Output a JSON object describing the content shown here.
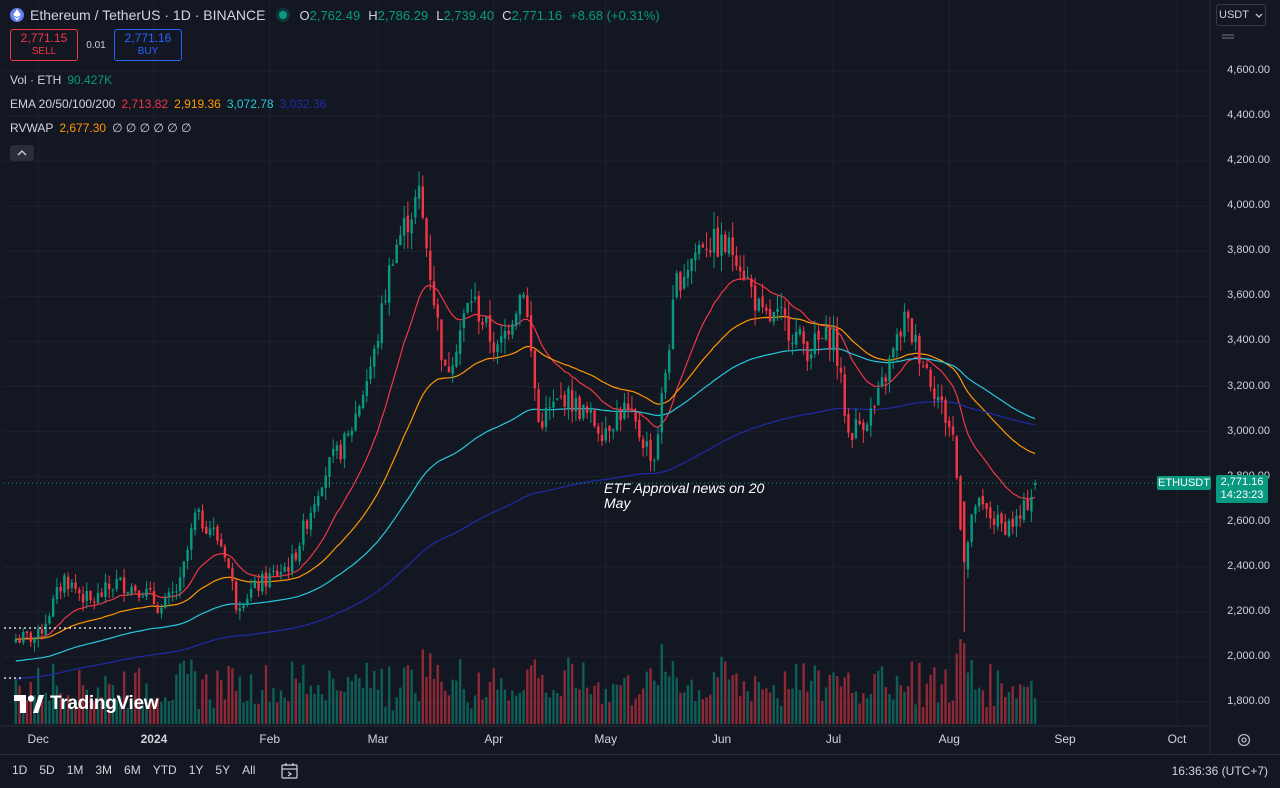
{
  "header": {
    "symbol_title": "Ethereum / TetherUS · 1D · BINANCE",
    "ohlc": [
      {
        "key": "O",
        "value": "2,762.49"
      },
      {
        "key": "H",
        "value": "2,786.29"
      },
      {
        "key": "L",
        "value": "2,739.40"
      },
      {
        "key": "C",
        "value": "2,771.16"
      },
      {
        "key": "",
        "value": "+8.68 (+0.31%)"
      }
    ]
  },
  "trade": {
    "sell_price": "2,771.15",
    "sell_label": "SELL",
    "spread": "0.01",
    "buy_price": "2,771.16",
    "buy_label": "BUY"
  },
  "indicators": {
    "volume": {
      "name": "Vol · ETH",
      "value": "90.427K"
    },
    "ema": {
      "name": "EMA 20/50/100/200",
      "values": [
        {
          "v": "2,713.82",
          "color": "#f23645"
        },
        {
          "v": "2,919.36",
          "color": "#ff9800"
        },
        {
          "v": "3,072.78",
          "color": "#26c6da"
        },
        {
          "v": "3,032.36",
          "color": "#1e2ba8"
        }
      ]
    },
    "rvwap": {
      "name": "RVWAP",
      "value": "2,677.30",
      "extras": "∅ ∅ ∅ ∅ ∅ ∅"
    }
  },
  "axis": {
    "currency": "USDT",
    "price_labels": [
      "4,600.00",
      "4,400.00",
      "4,200.00",
      "4,000.00",
      "3,800.00",
      "3,600.00",
      "3,400.00",
      "3,200.00",
      "3,000.00",
      "2,800.00",
      "2,600.00",
      "2,400.00",
      "2,200.00",
      "2,000.00",
      "1,800.00"
    ],
    "time_labels": [
      "Dec",
      "2024",
      "Feb",
      "Mar",
      "Apr",
      "May",
      "Jun",
      "Jul",
      "Aug",
      "Sep",
      "Oct"
    ]
  },
  "last_price": {
    "symbol": "ETHUSDT",
    "price": "2,771.16",
    "countdown": "14:23:23"
  },
  "annotation": {
    "text": "ETF Approval news on 20 May"
  },
  "watermark": {
    "text": "TradingView"
  },
  "bottom_bar": {
    "ranges": [
      "1D",
      "5D",
      "1M",
      "3M",
      "6M",
      "YTD",
      "1Y",
      "5Y",
      "All"
    ],
    "clock": "16:36:36 (UTC+7)"
  },
  "colors": {
    "up": "#089981",
    "down": "#f23645",
    "ema20": "#f23645",
    "ema50": "#ff9800",
    "ema100": "#26c6da",
    "ema200": "#1e2ba8"
  },
  "chart_data": {
    "type": "candlestick",
    "title": "Ethereum / TetherUS · 1D · BINANCE",
    "ylim": [
      1750,
      4800
    ],
    "y_ticks": [
      1800,
      2000,
      2200,
      2400,
      2600,
      2800,
      3000,
      3200,
      3400,
      3600,
      3800,
      4000,
      4200,
      4400,
      4600
    ],
    "x_ticks": [
      "Dec",
      "2024",
      "Feb",
      "Mar",
      "Apr",
      "May",
      "Jun",
      "Jul",
      "Aug",
      "Sep",
      "Oct"
    ],
    "current_price": 2771.16,
    "anchors": [
      {
        "date": "2023-11-25",
        "close": 2080
      },
      {
        "date": "2023-12-01",
        "close": 2090
      },
      {
        "date": "2023-12-08",
        "close": 2350
      },
      {
        "date": "2023-12-15",
        "close": 2240
      },
      {
        "date": "2023-12-22",
        "close": 2330
      },
      {
        "date": "2023-12-29",
        "close": 2300
      },
      {
        "date": "2024-01-03",
        "close": 2210
      },
      {
        "date": "2024-01-08",
        "close": 2320
      },
      {
        "date": "2024-01-12",
        "close": 2620
      },
      {
        "date": "2024-01-16",
        "close": 2580
      },
      {
        "date": "2024-01-20",
        "close": 2470
      },
      {
        "date": "2024-01-23",
        "close": 2240
      },
      {
        "date": "2024-01-30",
        "close": 2330
      },
      {
        "date": "2024-02-07",
        "close": 2420
      },
      {
        "date": "2024-02-15",
        "close": 2800
      },
      {
        "date": "2024-02-22",
        "close": 2970
      },
      {
        "date": "2024-02-29",
        "close": 3340
      },
      {
        "date": "2024-03-05",
        "close": 3800
      },
      {
        "date": "2024-03-12",
        "close": 4050
      },
      {
        "date": "2024-03-19",
        "close": 3250
      },
      {
        "date": "2024-03-26",
        "close": 3600
      },
      {
        "date": "2024-04-02",
        "close": 3350
      },
      {
        "date": "2024-04-09",
        "close": 3650
      },
      {
        "date": "2024-04-13",
        "close": 3040
      },
      {
        "date": "2024-04-20",
        "close": 3160
      },
      {
        "date": "2024-04-30",
        "close": 3010
      },
      {
        "date": "2024-05-06",
        "close": 3100
      },
      {
        "date": "2024-05-14",
        "close": 2880
      },
      {
        "date": "2024-05-20",
        "close": 3660
      },
      {
        "date": "2024-05-27",
        "close": 3850
      },
      {
        "date": "2024-06-05",
        "close": 3800
      },
      {
        "date": "2024-06-12",
        "close": 3500
      },
      {
        "date": "2024-06-17",
        "close": 3500
      },
      {
        "date": "2024-06-24",
        "close": 3370
      },
      {
        "date": "2024-07-01",
        "close": 3430
      },
      {
        "date": "2024-07-05",
        "close": 2990
      },
      {
        "date": "2024-07-12",
        "close": 3100
      },
      {
        "date": "2024-07-20",
        "close": 3500
      },
      {
        "date": "2024-07-26",
        "close": 3280
      },
      {
        "date": "2024-08-02",
        "close": 2980
      },
      {
        "date": "2024-08-05",
        "close": 2420
      },
      {
        "date": "2024-08-08",
        "close": 2680
      },
      {
        "date": "2024-08-15",
        "close": 2580
      },
      {
        "date": "2024-08-20",
        "close": 2610
      },
      {
        "date": "2024-08-24",
        "close": 2771
      }
    ]
  }
}
